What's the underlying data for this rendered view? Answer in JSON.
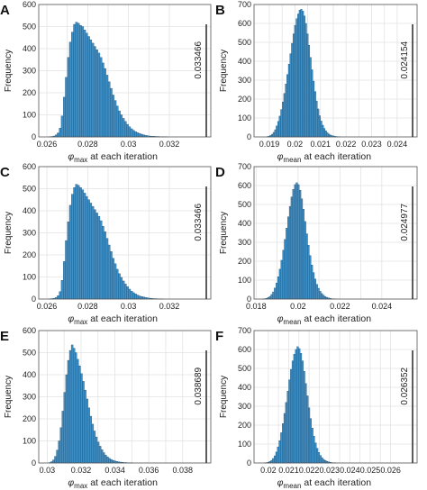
{
  "colors": {
    "bar_fill": "#3d8fc6",
    "bar_edge": "#1f4e73",
    "threshold_line": "#333333",
    "grid": "#e3e3e3"
  },
  "chart_data": [
    {
      "panel": "A",
      "type": "bar",
      "ylabel": "Frequency",
      "xlabel_symbol": "φ",
      "xlabel_sub": "max",
      "xlabel_rest": " at each iteration",
      "xlim": [
        0.0256,
        0.0334
      ],
      "ylim": [
        0,
        600
      ],
      "xticks": [
        0.026,
        0.027,
        0.028,
        0.029,
        0.03,
        0.031,
        0.032
      ],
      "xtick_labels": [
        "0.026",
        "",
        "0.028",
        "",
        "0.03",
        "",
        "0.032"
      ],
      "yticks": [
        0,
        100,
        200,
        300,
        400,
        500,
        600
      ],
      "grid": true,
      "bin_start": 0.0261,
      "bin_width": 0.0001,
      "values": [
        1,
        2,
        4,
        9,
        18,
        40,
        95,
        180,
        270,
        360,
        430,
        475,
        510,
        520,
        515,
        505,
        500,
        485,
        470,
        455,
        440,
        425,
        410,
        395,
        380,
        360,
        335,
        310,
        280,
        250,
        220,
        190,
        165,
        140,
        118,
        100,
        84,
        70,
        57,
        46,
        37,
        30,
        24,
        19,
        15,
        12,
        9,
        7,
        5,
        4,
        3,
        3,
        2,
        2,
        1,
        1,
        1,
        1
      ],
      "threshold": 0.033466,
      "threshold_label": "0.033466"
    },
    {
      "panel": "B",
      "type": "bar",
      "ylabel": "Frequency",
      "xlabel_symbol": "φ",
      "xlabel_sub": "mean",
      "xlabel_rest": " at each iteration",
      "xlim": [
        0.0184,
        0.0243
      ],
      "ylim": [
        0,
        700
      ],
      "xticks": [
        0.019,
        0.0195,
        0.02,
        0.0205,
        0.021,
        0.0215,
        0.022,
        0.0225,
        0.023,
        0.0235,
        0.024
      ],
      "xtick_labels": [
        "0.019",
        "",
        "0.02",
        "",
        "0.021",
        "",
        "0.022",
        "",
        "0.023",
        "",
        "0.024"
      ],
      "yticks": [
        0,
        100,
        200,
        300,
        400,
        500,
        600,
        700
      ],
      "grid": true,
      "bin_start": 0.0189,
      "bin_width": 6e-05,
      "values": [
        2,
        4,
        8,
        14,
        24,
        38,
        58,
        82,
        110,
        145,
        185,
        230,
        280,
        330,
        385,
        440,
        495,
        545,
        590,
        625,
        650,
        670,
        675,
        665,
        640,
        600,
        545,
        485,
        420,
        355,
        295,
        240,
        190,
        148,
        112,
        84,
        62,
        45,
        32,
        22,
        15,
        10,
        7,
        5,
        3,
        2,
        1,
        1
      ],
      "threshold": 0.024154,
      "threshold_label": "0.024154"
    },
    {
      "panel": "C",
      "type": "bar",
      "ylabel": "Frequency",
      "xlabel_symbol": "φ",
      "xlabel_sub": "max",
      "xlabel_rest": " at each iteration",
      "xlim": [
        0.0256,
        0.0334
      ],
      "ylim": [
        0,
        600
      ],
      "xticks": [
        0.026,
        0.027,
        0.028,
        0.029,
        0.03,
        0.031,
        0.032
      ],
      "xtick_labels": [
        "0.026",
        "",
        "0.028",
        "",
        "0.03",
        "",
        "0.032"
      ],
      "yticks": [
        0,
        100,
        200,
        300,
        400,
        500,
        600
      ],
      "grid": true,
      "bin_start": 0.0261,
      "bin_width": 0.0001,
      "values": [
        1,
        2,
        3,
        7,
        15,
        34,
        85,
        170,
        265,
        350,
        425,
        475,
        505,
        520,
        515,
        505,
        495,
        480,
        465,
        450,
        435,
        420,
        405,
        390,
        375,
        355,
        330,
        305,
        275,
        245,
        215,
        185,
        160,
        135,
        115,
        98,
        82,
        68,
        56,
        45,
        36,
        29,
        23,
        18,
        14,
        11,
        9,
        7,
        5,
        4,
        3,
        2,
        2,
        1,
        1,
        1
      ],
      "threshold": 0.033466,
      "threshold_label": "0.033466"
    },
    {
      "panel": "D",
      "type": "bar",
      "ylabel": "Frequency",
      "xlabel_symbol": "φ",
      "xlabel_sub": "mean",
      "xlabel_rest": " at each iteration",
      "xlim": [
        0.0179,
        0.0251
      ],
      "ylim": [
        0,
        700
      ],
      "xticks": [
        0.018,
        0.019,
        0.02,
        0.021,
        0.022,
        0.023,
        0.024
      ],
      "xtick_labels": [
        "0.018",
        "",
        "0.02",
        "",
        "0.022",
        "",
        "0.024"
      ],
      "yticks": [
        0,
        100,
        200,
        300,
        400,
        500,
        600,
        700
      ],
      "grid": true,
      "bin_start": 0.0183,
      "bin_width": 8e-05,
      "values": [
        1,
        2,
        4,
        8,
        14,
        24,
        38,
        58,
        85,
        118,
        158,
        205,
        258,
        315,
        375,
        435,
        490,
        540,
        580,
        605,
        615,
        605,
        575,
        530,
        475,
        410,
        345,
        285,
        230,
        180,
        140,
        106,
        78,
        57,
        41,
        29,
        20,
        13,
        9,
        6,
        4,
        2,
        1,
        1
      ],
      "threshold": 0.024977,
      "threshold_label": "0.024977"
    },
    {
      "panel": "E",
      "type": "bar",
      "ylabel": "Frequency",
      "xlabel_symbol": "φ",
      "xlabel_sub": "max",
      "xlabel_rest": " at each iteration",
      "xlim": [
        0.0295,
        0.0389
      ],
      "ylim": [
        0,
        600
      ],
      "xticks": [
        0.03,
        0.031,
        0.032,
        0.033,
        0.034,
        0.035,
        0.036,
        0.037,
        0.038
      ],
      "xtick_labels": [
        "0.03",
        "",
        "0.032",
        "",
        "0.034",
        "",
        "0.036",
        "",
        "0.038"
      ],
      "yticks": [
        0,
        100,
        200,
        300,
        400,
        500,
        600
      ],
      "grid": true,
      "bin_start": 0.0301,
      "bin_width": 0.00011,
      "values": [
        2,
        6,
        14,
        30,
        58,
        100,
        160,
        235,
        320,
        400,
        465,
        510,
        535,
        520,
        500,
        470,
        440,
        405,
        370,
        330,
        290,
        250,
        212,
        176,
        145,
        118,
        95,
        76,
        60,
        47,
        36,
        28,
        21,
        16,
        12,
        9,
        7,
        5,
        4,
        3,
        2,
        2,
        1,
        1,
        1
      ],
      "threshold": 0.038689,
      "threshold_label": "0.038689"
    },
    {
      "panel": "F",
      "type": "bar",
      "ylabel": "Frequency",
      "xlabel_symbol": "φ",
      "xlabel_sub": "mean",
      "xlabel_rest": " at each iteration",
      "xlim": [
        0.0193,
        0.0267
      ],
      "ylim": [
        0,
        700
      ],
      "xticks": [
        0.02,
        0.0205,
        0.021,
        0.0215,
        0.022,
        0.0225,
        0.023,
        0.0235,
        0.024,
        0.0245,
        0.025,
        0.0255,
        0.026
      ],
      "xtick_labels": [
        "0.02",
        "",
        "0.021",
        "",
        "0.022",
        "",
        "0.023",
        "",
        "0.024",
        "",
        "0.025",
        "",
        "0.026"
      ],
      "yticks": [
        0,
        100,
        200,
        300,
        400,
        500,
        600,
        700
      ],
      "grid": true,
      "bin_start": 0.0198,
      "bin_width": 8e-05,
      "values": [
        1,
        2,
        4,
        8,
        14,
        24,
        38,
        58,
        85,
        118,
        160,
        208,
        262,
        320,
        380,
        440,
        495,
        540,
        575,
        600,
        615,
        605,
        580,
        540,
        485,
        420,
        355,
        292,
        235,
        185,
        142,
        106,
        78,
        56,
        40,
        28,
        19,
        13,
        9,
        6,
        4,
        2,
        1,
        1
      ],
      "threshold": 0.026352,
      "threshold_label": "0.026352"
    }
  ]
}
